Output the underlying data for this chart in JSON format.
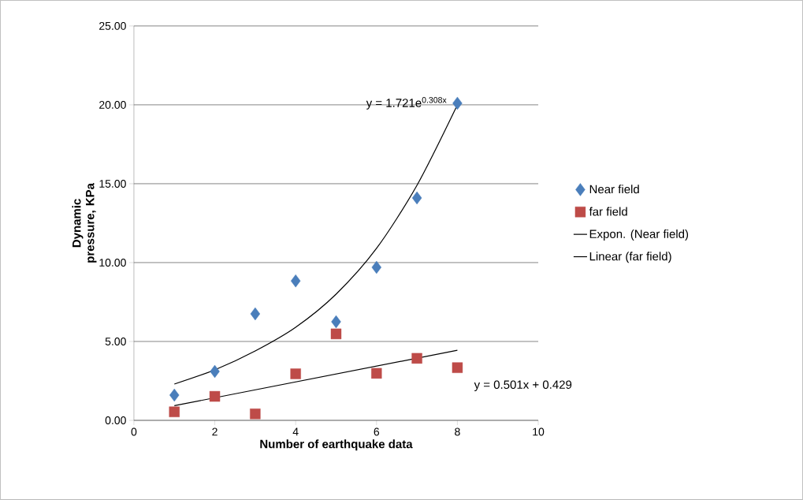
{
  "chart_data": {
    "type": "scatter",
    "xlabel": "Number of earthquake data",
    "ylabel": "Dynamic pressure, KPa",
    "series": [
      {
        "name": "Near field",
        "marker": "diamond",
        "color": "#4a7ebb",
        "x": [
          1,
          2,
          3,
          4,
          5,
          6,
          7,
          8
        ],
        "values": [
          1.6,
          3.1,
          6.75,
          8.84,
          6.25,
          9.7,
          14.1,
          20.1
        ]
      },
      {
        "name": "far field",
        "marker": "square",
        "color": "#be4b48",
        "x": [
          1,
          2,
          3,
          4,
          5,
          6,
          7,
          8
        ],
        "values": [
          0.54,
          1.52,
          0.41,
          2.95,
          5.48,
          2.98,
          3.93,
          3.34
        ]
      },
      {
        "name": "Expon. (Near field)",
        "type": "line",
        "marker": "none",
        "line_style": "solid",
        "color": "#000000",
        "x": [
          1,
          2,
          3,
          4,
          5,
          6,
          7,
          8
        ],
        "values": [
          2.3,
          3.2,
          4.4,
          5.9,
          8.0,
          10.9,
          14.9,
          20.0
        ]
      },
      {
        "name": "Linear (far field)",
        "type": "line",
        "marker": "none",
        "line_style": "solid",
        "color": "#000000",
        "x": [
          1,
          8
        ],
        "values": [
          0.93,
          4.44
        ]
      }
    ],
    "annotations": [
      {
        "text": "y = 1.721e$^{0.308x}$",
        "x": 8,
        "y": 20.0
      },
      {
        "text": "y = 0.501x + 0.429",
        "x": 8,
        "y": 4.44
      }
    ],
    "xlim": [
      0,
      10
    ],
    "xticks": [
      0,
      2,
      4,
      6,
      8,
      10
    ],
    "ylim": [
      0,
      25
    ],
    "yticks": [
      {
        "value": 0,
        "label": "0.00"
      },
      {
        "value": 5,
        "label": "5.00"
      },
      {
        "value": 10,
        "label": "10.00"
      },
      {
        "value": 15,
        "label": "15.00"
      },
      {
        "value": 20,
        "label": "20.00"
      },
      {
        "value": 25,
        "label": "25.00"
      }
    ],
    "grid": "y",
    "legend": "right"
  }
}
